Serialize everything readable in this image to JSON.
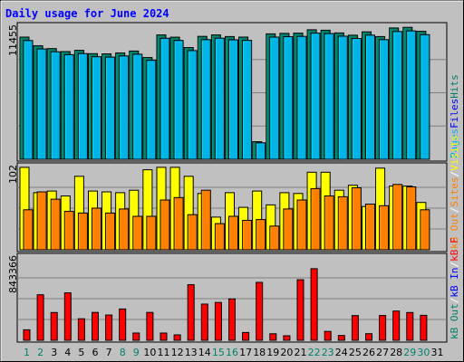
{
  "chart_data": {
    "type": "bar",
    "title": "Daily usage for June 2024",
    "categories": [
      "1",
      "2",
      "3",
      "4",
      "5",
      "6",
      "7",
      "8",
      "9",
      "10",
      "11",
      "12",
      "13",
      "14",
      "15",
      "16",
      "17",
      "18",
      "19",
      "20",
      "21",
      "22",
      "23",
      "24",
      "25",
      "26",
      "27",
      "28",
      "29",
      "30",
      "31"
    ],
    "weekend_days": [
      "1",
      "2",
      "8",
      "9",
      "15",
      "16",
      "22",
      "23",
      "29",
      "30"
    ],
    "panels": [
      {
        "scale_label": "11455",
        "ymax": 11455,
        "side_labels": [
          {
            "text": "Hits",
            "color": "#00806b"
          },
          {
            "text": "Files",
            "color": "#0000ff"
          },
          {
            "text": "Pages",
            "color": "#00b4e6"
          }
        ],
        "series": [
          {
            "name": "Hits",
            "color": "#00806b",
            "values": [
              10520,
              9770,
              9530,
              9270,
              9380,
              9090,
              9080,
              9160,
              9320,
              8760,
              10710,
              10510,
              9620,
              10580,
              10710,
              10570,
              10520,
              1510,
              10800,
              10840,
              10860,
              11150,
              11110,
              10880,
              10680,
              10970,
              10570,
              11305,
              11360,
              11020,
              null
            ]
          },
          {
            "name": "Files",
            "color": "#00b4e6",
            "values": [
              10220,
              9500,
              9260,
              9010,
              9100,
              8830,
              8800,
              8900,
              9050,
              8520,
              10420,
              10230,
              9360,
              10300,
              10430,
              10290,
              10240,
              1420,
              10520,
              10560,
              10580,
              10860,
              10820,
              10600,
              10400,
              10690,
              10300,
              11000,
              11060,
              10730,
              null
            ]
          }
        ]
      },
      {
        "scale_label": "102",
        "ymax": 102,
        "side_labels": [
          {
            "text": "Visits",
            "color": "#ffff00"
          },
          {
            "text": "/",
            "color": "#ffffff"
          },
          {
            "text": "Sites",
            "color": "#ff8000"
          },
          {
            "text": "/",
            "color": "#ffffff"
          },
          {
            "text": "kB Out",
            "color": "#ff8000"
          }
        ],
        "series": [
          {
            "name": "Visits",
            "color": "#ffff00",
            "values": [
              101,
              70,
              72,
              66,
              90,
              72,
              71,
              70,
              73,
              98,
              101,
              101,
              90,
              69,
              40,
              70,
              52,
              72,
              55,
              70,
              69,
              95,
              95,
              73,
              79,
              53,
              100,
              78,
              78,
              58,
              null
            ]
          },
          {
            "name": "Sites",
            "color": "#ff8000",
            "values": [
              49,
              71,
              62,
              47,
              45,
              51,
              45,
              50,
              41,
              41,
              61,
              64,
              43,
              73,
              32,
              41,
              36,
              37,
              29,
              50,
              61,
              75,
              66,
              65,
              76,
              56,
              54,
              80,
              77,
              49,
              null
            ]
          }
        ]
      },
      {
        "scale_label": "843366",
        "ymax": 843366,
        "side_labels": [
          {
            "text": "kB F",
            "color": "#ff0000"
          },
          {
            "text": "/",
            "color": "#ffffff"
          },
          {
            "text": "kB In",
            "color": "#0000ff"
          },
          {
            "text": "/",
            "color": "#ffffff"
          },
          {
            "text": "kB Out",
            "color": "#00806b"
          }
        ],
        "series": [
          {
            "name": "kB F",
            "color": "#ff0000",
            "values": [
              106000,
              461000,
              281000,
              480000,
              218000,
              282000,
              256000,
              317000,
              73000,
              282000,
              73000,
              55000,
              563000,
              367000,
              383000,
              419000,
              79000,
              587000,
              66000,
              46000,
              613000,
              725000,
              90000,
              49000,
              250000,
              67000,
              251000,
              296000,
              281000,
              253000,
              null
            ]
          }
        ]
      }
    ]
  }
}
